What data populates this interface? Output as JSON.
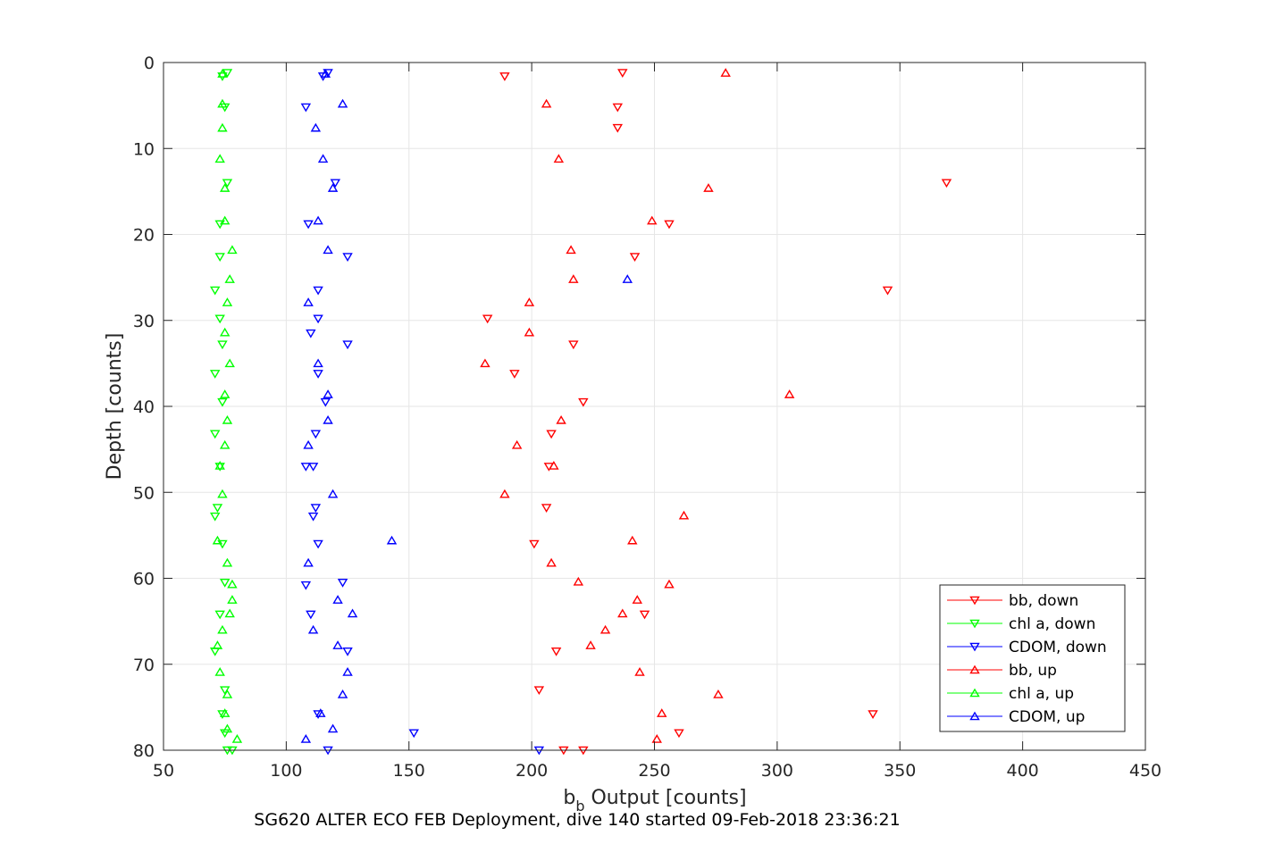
{
  "chart_data": {
    "type": "scatter",
    "xlabel_main": "b",
    "xlabel_sub": "b",
    "xlabel_rest": " Output [counts]",
    "ylabel": "Depth [counts]",
    "caption": "SG620 ALTER ECO FEB Deployment, dive 140 started 09-Feb-2018 23:36:21",
    "xlim": [
      50,
      450
    ],
    "ylim": [
      0,
      80
    ],
    "y_reversed": true,
    "grid": true,
    "legend_position": "bottom-right",
    "x_ticks": [
      50,
      100,
      150,
      200,
      250,
      300,
      350,
      400,
      450
    ],
    "y_ticks": [
      0,
      10,
      20,
      30,
      40,
      50,
      60,
      70,
      80
    ],
    "series": [
      {
        "name": "bb, down",
        "color": "#ff0000",
        "marker": "triangle-down",
        "points": [
          [
            237,
            1.2
          ],
          [
            189,
            1.6
          ],
          [
            235,
            5.2
          ],
          [
            235,
            7.6
          ],
          [
            369,
            14
          ],
          [
            256,
            18.8
          ],
          [
            242,
            22.6
          ],
          [
            345,
            26.5
          ],
          [
            182,
            29.8
          ],
          [
            217,
            32.8
          ],
          [
            193,
            36.2
          ],
          [
            221,
            39.5
          ],
          [
            208,
            43.2
          ],
          [
            207,
            47
          ],
          [
            206,
            51.8
          ],
          [
            201,
            56
          ],
          [
            246,
            64.2
          ],
          [
            210,
            68.5
          ],
          [
            203,
            73
          ],
          [
            339,
            75.8
          ],
          [
            260,
            78
          ],
          [
            213,
            80
          ],
          [
            221,
            80
          ]
        ]
      },
      {
        "name": "chl a, down",
        "color": "#00ff00",
        "marker": "triangle-down",
        "points": [
          [
            76,
            1.2
          ],
          [
            74,
            1.6
          ],
          [
            75,
            5.2
          ],
          [
            76,
            14
          ],
          [
            73,
            18.8
          ],
          [
            73,
            22.6
          ],
          [
            71,
            26.5
          ],
          [
            73,
            29.8
          ],
          [
            74,
            32.8
          ],
          [
            71,
            36.2
          ],
          [
            74,
            39.5
          ],
          [
            71,
            43.2
          ],
          [
            73,
            47
          ],
          [
            72,
            51.8
          ],
          [
            71,
            52.8
          ],
          [
            74,
            56
          ],
          [
            75,
            60.5
          ],
          [
            73,
            64.2
          ],
          [
            71,
            68.5
          ],
          [
            75,
            73
          ],
          [
            74,
            75.8
          ],
          [
            75,
            78
          ],
          [
            78,
            80
          ],
          [
            76,
            80
          ]
        ]
      },
      {
        "name": "CDOM, down",
        "color": "#0000ff",
        "marker": "triangle-down",
        "points": [
          [
            117,
            1.2
          ],
          [
            115,
            1.6
          ],
          [
            108,
            5.2
          ],
          [
            120,
            14
          ],
          [
            109,
            18.8
          ],
          [
            125,
            22.6
          ],
          [
            113,
            26.5
          ],
          [
            113,
            29.8
          ],
          [
            110,
            31.5
          ],
          [
            125,
            32.8
          ],
          [
            113,
            36.2
          ],
          [
            116,
            39.5
          ],
          [
            112,
            43.2
          ],
          [
            111,
            47
          ],
          [
            108,
            47
          ],
          [
            112,
            51.8
          ],
          [
            111,
            52.8
          ],
          [
            113,
            56
          ],
          [
            123,
            60.5
          ],
          [
            108,
            60.8
          ],
          [
            110,
            64.2
          ],
          [
            125,
            68.5
          ],
          [
            113,
            75.8
          ],
          [
            152,
            78
          ],
          [
            117,
            80
          ],
          [
            203,
            80
          ]
        ]
      },
      {
        "name": "bb, up",
        "color": "#ff0000",
        "marker": "triangle-up",
        "points": [
          [
            279,
            1.2
          ],
          [
            206,
            4.8
          ],
          [
            211,
            11.2
          ],
          [
            272,
            14.6
          ],
          [
            249,
            18.4
          ],
          [
            216,
            21.8
          ],
          [
            217,
            25.2
          ],
          [
            199,
            27.9
          ],
          [
            199,
            31.4
          ],
          [
            181,
            35
          ],
          [
            305,
            38.6
          ],
          [
            212,
            41.6
          ],
          [
            194,
            44.5
          ],
          [
            209,
            46.9
          ],
          [
            189,
            50.2
          ],
          [
            262,
            52.7
          ],
          [
            241,
            55.6
          ],
          [
            208,
            58.2
          ],
          [
            219,
            60.4
          ],
          [
            256,
            60.7
          ],
          [
            243,
            62.5
          ],
          [
            237,
            64.1
          ],
          [
            230,
            66
          ],
          [
            224,
            67.8
          ],
          [
            244,
            70.9
          ],
          [
            276,
            73.5
          ],
          [
            253,
            75.7
          ],
          [
            251,
            78.7
          ]
        ]
      },
      {
        "name": "chl a, up",
        "color": "#00ff00",
        "marker": "triangle-up",
        "points": [
          [
            74,
            1.3
          ],
          [
            74,
            4.8
          ],
          [
            74,
            7.6
          ],
          [
            73,
            11.2
          ],
          [
            75,
            14.6
          ],
          [
            75,
            18.4
          ],
          [
            78,
            21.8
          ],
          [
            77,
            25.2
          ],
          [
            76,
            27.9
          ],
          [
            75,
            31.4
          ],
          [
            77,
            35
          ],
          [
            75,
            38.6
          ],
          [
            76,
            41.6
          ],
          [
            75,
            44.5
          ],
          [
            73,
            46.9
          ],
          [
            74,
            50.2
          ],
          [
            72,
            55.6
          ],
          [
            76,
            58.2
          ],
          [
            78,
            60.7
          ],
          [
            78,
            62.5
          ],
          [
            77,
            64.1
          ],
          [
            74,
            66
          ],
          [
            72,
            67.8
          ],
          [
            73,
            70.9
          ],
          [
            76,
            73.5
          ],
          [
            75,
            75.7
          ],
          [
            76,
            77.5
          ],
          [
            80,
            78.7
          ]
        ]
      },
      {
        "name": "CDOM, up",
        "color": "#0000ff",
        "marker": "triangle-up",
        "points": [
          [
            116,
            1.3
          ],
          [
            123,
            4.8
          ],
          [
            112,
            7.6
          ],
          [
            115,
            11.2
          ],
          [
            119,
            14.6
          ],
          [
            113,
            18.4
          ],
          [
            117,
            21.8
          ],
          [
            239,
            25.2
          ],
          [
            109,
            27.9
          ],
          [
            113,
            35
          ],
          [
            117,
            38.6
          ],
          [
            117,
            41.6
          ],
          [
            109,
            44.5
          ],
          [
            119,
            50.2
          ],
          [
            143,
            55.6
          ],
          [
            109,
            58.2
          ],
          [
            121,
            62.5
          ],
          [
            127,
            64.1
          ],
          [
            111,
            66
          ],
          [
            121,
            67.8
          ],
          [
            125,
            70.9
          ],
          [
            123,
            73.5
          ],
          [
            114,
            75.7
          ],
          [
            119,
            77.5
          ],
          [
            108,
            78.7
          ]
        ]
      }
    ]
  }
}
